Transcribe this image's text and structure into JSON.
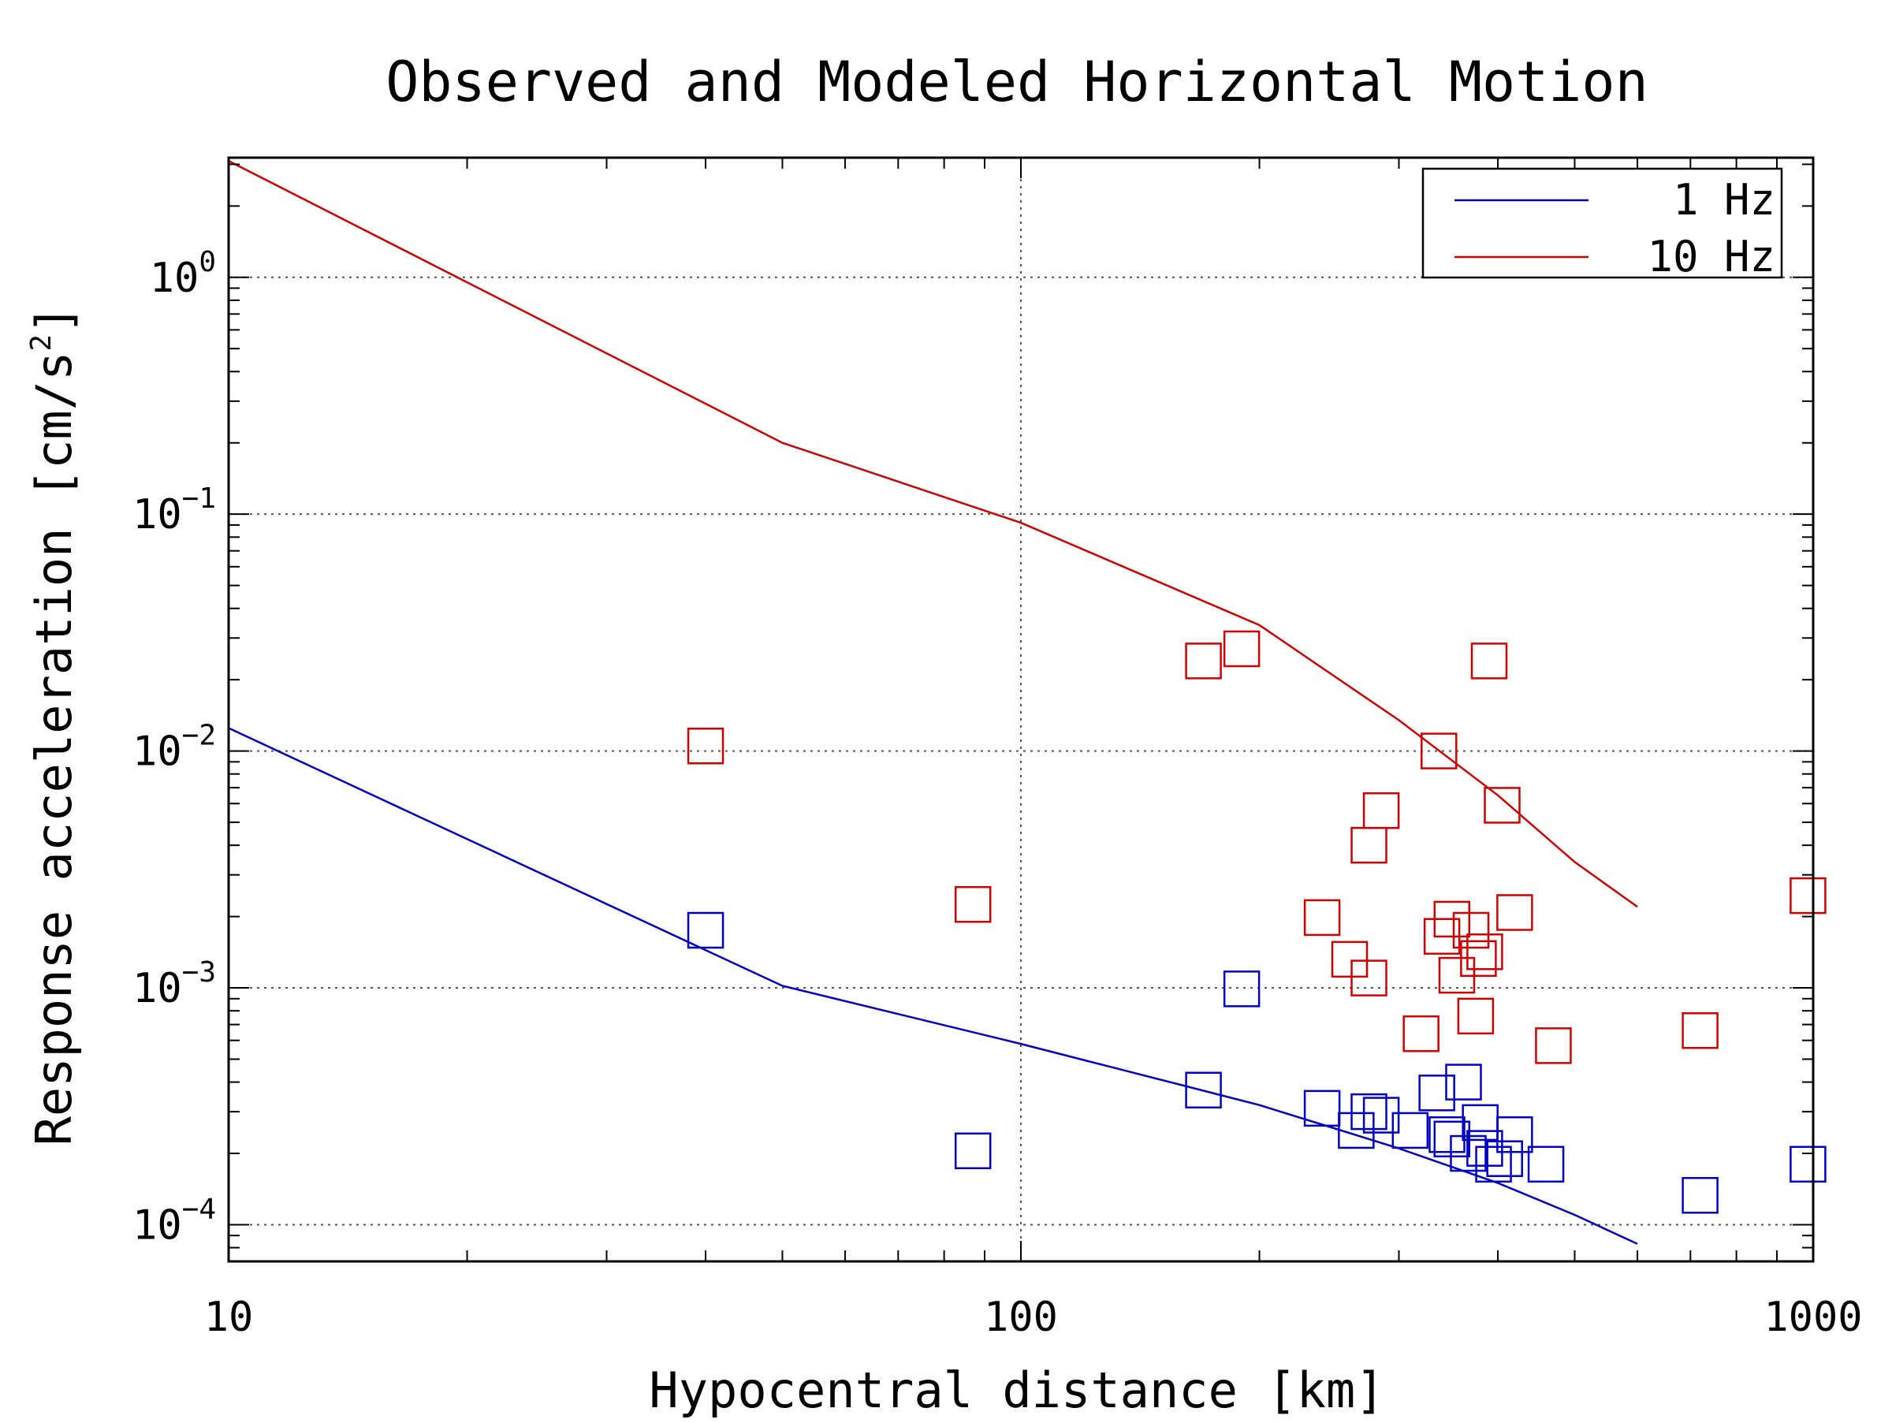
{
  "chart_data": {
    "type": "scatter",
    "title": "Observed and Modeled Horizontal Motion",
    "xlabel": "Hypocentral distance [km]",
    "ylabel": {
      "main": "Response acceleration [cm/s",
      "sup": "2",
      "close": "]"
    },
    "x_scale": "log",
    "y_scale": "log",
    "xlim": [
      10,
      1000
    ],
    "ylim": [
      7e-05,
      3.2
    ],
    "grid": true,
    "legend_placement": "top-right",
    "x_ticks": [
      {
        "value": 10,
        "label": "10"
      },
      {
        "value": 100,
        "label": "100"
      },
      {
        "value": 1000,
        "label": "1000"
      }
    ],
    "y_ticks": [
      {
        "value": 1,
        "base": "10",
        "exp": "0"
      },
      {
        "value": 0.1,
        "base": "10",
        "exp": "−1"
      },
      {
        "value": 0.01,
        "base": "10",
        "exp": "−2"
      },
      {
        "value": 0.001,
        "base": "10",
        "exp": "−3"
      },
      {
        "value": 0.0001,
        "base": "10",
        "exp": "−4"
      }
    ],
    "series": [
      {
        "name": "1 Hz",
        "color": "#0000c8",
        "line": [
          [
            10,
            0.0125
          ],
          [
            50,
            0.00102
          ],
          [
            100,
            0.00058
          ],
          [
            200,
            0.00032
          ],
          [
            300,
            0.00021
          ],
          [
            400,
            0.00015
          ],
          [
            500,
            0.00011
          ],
          [
            600,
            8.3e-05
          ]
        ],
        "points": [
          [
            40,
            0.00175
          ],
          [
            87,
            0.000205
          ],
          [
            170,
            0.00037
          ],
          [
            190,
            0.00099
          ],
          [
            240,
            0.00031
          ],
          [
            265,
            0.00025
          ],
          [
            275,
            0.0003
          ],
          [
            285,
            0.00029
          ],
          [
            310,
            0.00025
          ],
          [
            335,
            0.00036
          ],
          [
            345,
            0.00024
          ],
          [
            350,
            0.00023
          ],
          [
            362,
            0.0004
          ],
          [
            367,
            0.0002
          ],
          [
            380,
            0.00027
          ],
          [
            385,
            0.00021
          ],
          [
            395,
            0.00018
          ],
          [
            408,
            0.00019
          ],
          [
            420,
            0.00024
          ],
          [
            460,
            0.00018
          ],
          [
            720,
            0.000133
          ],
          [
            985,
            0.00018
          ]
        ]
      },
      {
        "name": "10 Hz",
        "color": "#d20000",
        "line": [
          [
            10,
            3.1
          ],
          [
            50,
            0.2
          ],
          [
            100,
            0.092
          ],
          [
            200,
            0.034
          ],
          [
            300,
            0.0135
          ],
          [
            400,
            0.0065
          ],
          [
            500,
            0.0034
          ],
          [
            600,
            0.0022
          ]
        ],
        "points": [
          [
            40,
            0.0105
          ],
          [
            87,
            0.00225
          ],
          [
            170,
            0.024
          ],
          [
            190,
            0.027
          ],
          [
            240,
            0.00198
          ],
          [
            260,
            0.00132
          ],
          [
            275,
            0.0011
          ],
          [
            275,
            0.004
          ],
          [
            285,
            0.0056
          ],
          [
            320,
            0.00064
          ],
          [
            337,
            0.01
          ],
          [
            340,
            0.00165
          ],
          [
            350,
            0.00195
          ],
          [
            355,
            0.00113
          ],
          [
            370,
            0.00175
          ],
          [
            375,
            0.00076
          ],
          [
            378,
            0.00133
          ],
          [
            385,
            0.00142
          ],
          [
            390,
            0.024
          ],
          [
            405,
            0.0059
          ],
          [
            420,
            0.00208
          ],
          [
            470,
            0.00057
          ],
          [
            720,
            0.00066
          ],
          [
            985,
            0.00245
          ]
        ]
      }
    ]
  }
}
